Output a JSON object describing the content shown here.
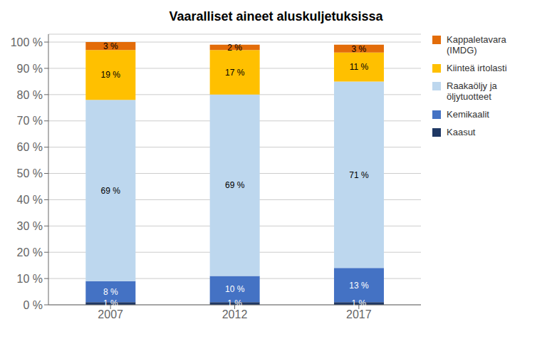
{
  "chart_data": {
    "type": "bar",
    "title": "Vaaralliset aineet aluskuljetuksissa",
    "categories": [
      "2007",
      "2012",
      "2017"
    ],
    "series": [
      {
        "name": "Kaasut",
        "color": "#1F3864",
        "values": [
          1,
          1,
          1
        ],
        "value_labels": [
          "1 %",
          "1 %",
          "1 %"
        ]
      },
      {
        "name": "Kemikaalit",
        "color": "#4472C4",
        "values": [
          8,
          10,
          13
        ],
        "value_labels": [
          "8 %",
          "10 %",
          "13 %"
        ]
      },
      {
        "name": "Raakaöljy ja\nöljytuotteet",
        "color": "#BDD7EE",
        "values": [
          69,
          69,
          71
        ],
        "value_labels": [
          "69 %",
          "69 %",
          "71 %"
        ]
      },
      {
        "name": "Kiinteä irtolasti",
        "color": "#FFC000",
        "values": [
          19,
          17,
          11
        ],
        "value_labels": [
          "19 %",
          "17 %",
          "11 %"
        ]
      },
      {
        "name": "Kappaletavara\n(IMDG)",
        "color": "#E36C09",
        "values": [
          3,
          2,
          3
        ],
        "value_labels": [
          "3 %",
          "2 %",
          "3 %"
        ]
      }
    ],
    "stacked": true,
    "data_labels": true,
    "ylim": [
      0,
      103
    ],
    "yticks": [
      {
        "value": 0,
        "label": "0 %"
      },
      {
        "value": 10,
        "label": "10 %"
      },
      {
        "value": 20,
        "label": "20 %"
      },
      {
        "value": 30,
        "label": "30 %"
      },
      {
        "value": 40,
        "label": "40 %"
      },
      {
        "value": 50,
        "label": "50 %"
      },
      {
        "value": 60,
        "label": "60 %"
      },
      {
        "value": 70,
        "label": "70 %"
      },
      {
        "value": 80,
        "label": "80 %"
      },
      {
        "value": 90,
        "label": "90 %"
      },
      {
        "value": 100,
        "label": "100 %"
      }
    ],
    "grid": true,
    "legend": "right"
  }
}
